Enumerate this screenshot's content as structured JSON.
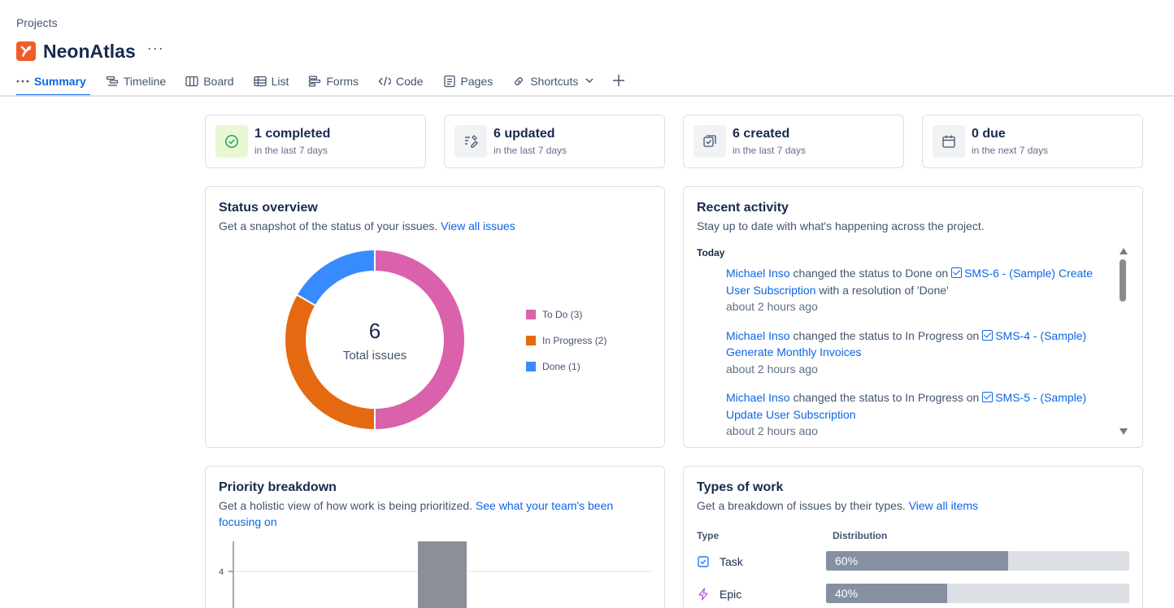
{
  "breadcrumb": "Projects",
  "project": {
    "name": "NeonAtlas",
    "icon": "project-logo-icon",
    "accent": "#f15b2a"
  },
  "tabs": [
    {
      "label": "Summary",
      "icon": "more-horizontal-icon",
      "active": true
    },
    {
      "label": "Timeline",
      "icon": "timeline-icon"
    },
    {
      "label": "Board",
      "icon": "board-icon"
    },
    {
      "label": "List",
      "icon": "list-icon"
    },
    {
      "label": "Forms",
      "icon": "forms-icon"
    },
    {
      "label": "Code",
      "icon": "code-icon"
    },
    {
      "label": "Pages",
      "icon": "pages-icon"
    },
    {
      "label": "Shortcuts",
      "icon": "link-icon"
    }
  ],
  "stats": [
    {
      "main": "1 completed",
      "sub": "in the last 7 days",
      "icon": "check-circle-icon"
    },
    {
      "main": "6 updated",
      "sub": "in the last 7 days",
      "icon": "edit-icon"
    },
    {
      "main": "6 created",
      "sub": "in the last 7 days",
      "icon": "create-icon"
    },
    {
      "main": "0 due",
      "sub": "in the next 7 days",
      "icon": "calendar-icon"
    }
  ],
  "status_overview": {
    "title": "Status overview",
    "desc": "Get a snapshot of the status of your issues.",
    "link": "View all issues",
    "total": "6",
    "total_label": "Total issues",
    "legend": [
      {
        "label": "To Do (3)",
        "color": "#da62ac"
      },
      {
        "label": "In Progress (2)",
        "color": "#e56910"
      },
      {
        "label": "Done (1)",
        "color": "#388bff"
      }
    ]
  },
  "chart_data": {
    "type": "pie",
    "categories": [
      "To Do",
      "In Progress",
      "Done"
    ],
    "values": [
      3,
      2,
      1
    ],
    "colors": [
      "#da62ac",
      "#e56910",
      "#388bff"
    ],
    "title": "",
    "xlabel": "",
    "ylabel": ""
  },
  "recent_activity": {
    "title": "Recent activity",
    "desc": "Stay up to date with what's happening across the project.",
    "group": "Today",
    "items": [
      {
        "user": "Michael Inso",
        "action": " changed the status to Done on ",
        "issue": "SMS-6 - (Sample) Create User Subscription",
        "suffix": " with a resolution of 'Done'",
        "time": "about 2 hours ago"
      },
      {
        "user": "Michael Inso",
        "action": " changed the status to In Progress on ",
        "issue": "SMS-4 - (Sample) Generate Monthly Invoices",
        "suffix": "",
        "time": "about 2 hours ago"
      },
      {
        "user": "Michael Inso",
        "action": " changed the status to In Progress on ",
        "issue": "SMS-5 - (Sample) Update User Subscription",
        "suffix": "",
        "time": "about 2 hours ago"
      }
    ]
  },
  "priority": {
    "title": "Priority breakdown",
    "desc": "Get a holistic view of how work is being prioritized.",
    "link": "See what your team's been focusing on",
    "tick": "4"
  },
  "types": {
    "title": "Types of work",
    "desc": "Get a breakdown of issues by their types.",
    "link": "View all items",
    "col_type": "Type",
    "col_dist": "Distribution",
    "rows": [
      {
        "label": "Task",
        "icon": "task-checkbox-icon",
        "pct_label": "60%",
        "pct": 0.6
      },
      {
        "label": "Epic",
        "icon": "epic-lightning-icon",
        "pct_label": "40%",
        "pct": 0.4
      }
    ]
  }
}
